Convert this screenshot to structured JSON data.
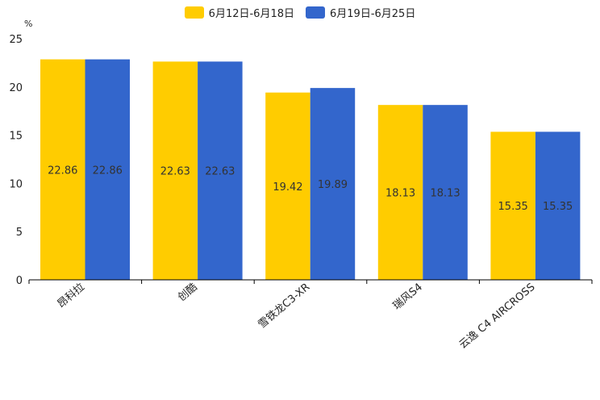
{
  "chart_data": {
    "type": "bar",
    "unit": "%",
    "categories": [
      "昂科拉",
      "创酷",
      "雪铁龙C3-XR",
      "瑞风S4",
      "云逸 C4 AIRCROSS"
    ],
    "series": [
      {
        "name": "6月12日-6月18日",
        "color": "#ffcc00",
        "values": [
          22.86,
          22.63,
          19.42,
          18.13,
          15.35
        ]
      },
      {
        "name": "6月19日-6月25日",
        "color": "#3366cc",
        "values": [
          22.86,
          22.63,
          19.89,
          18.13,
          15.35
        ]
      }
    ],
    "yticks": [
      "0",
      "5",
      "10",
      "15",
      "20",
      "25"
    ],
    "ylim": [
      0,
      25
    ],
    "legend_position": "top-center"
  }
}
